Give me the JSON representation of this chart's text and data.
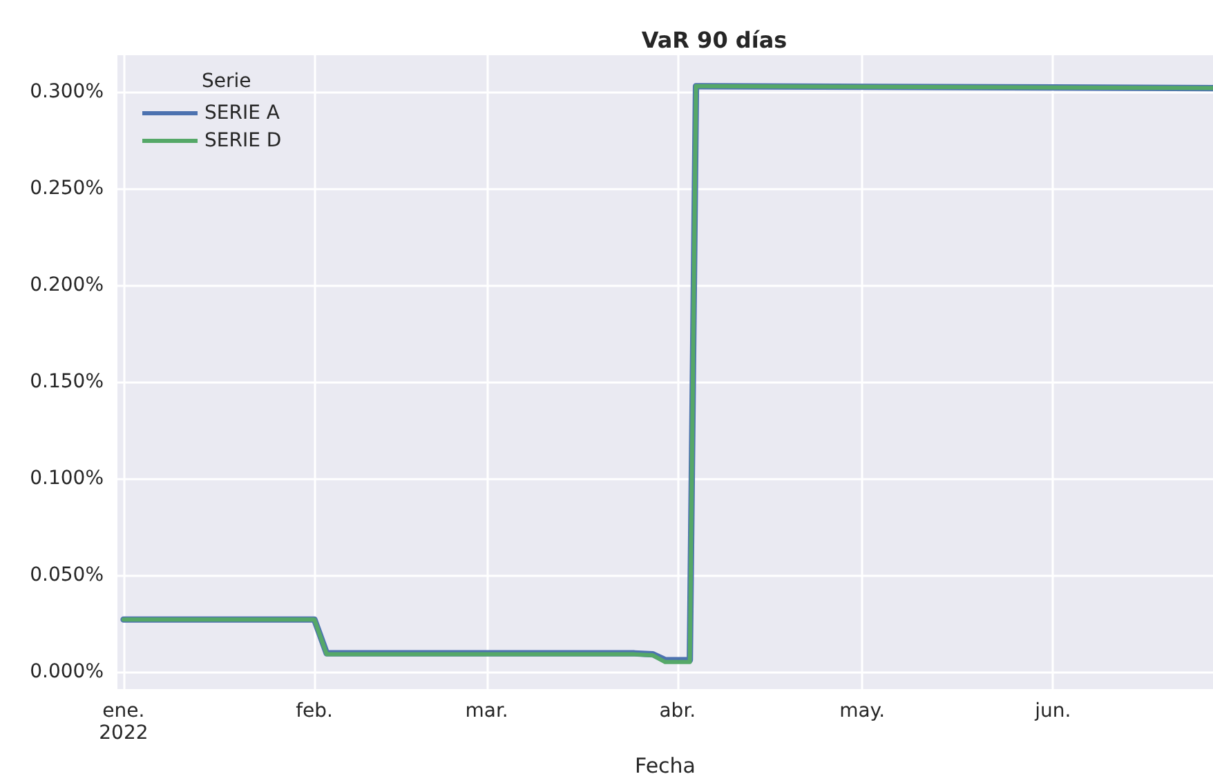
{
  "chart_data": {
    "type": "line",
    "title": "VaR 90 días",
    "xlabel": "Fecha",
    "legend_title": "Serie",
    "legend": "top left",
    "grid": true,
    "marker": "none",
    "line_style": "solid",
    "xlim": [
      "2021-12-31",
      "2022-06-27"
    ],
    "xticks": [
      {
        "value": "2022-01-01",
        "label": "ene.\n2022"
      },
      {
        "value": "2022-02-01",
        "label": "feb."
      },
      {
        "value": "2022-03-01",
        "label": "mar."
      },
      {
        "value": "2022-04-01",
        "label": "abr."
      },
      {
        "value": "2022-05-01",
        "label": "may."
      },
      {
        "value": "2022-06-01",
        "label": "jun."
      }
    ],
    "ylim": [
      -0.009,
      0.319
    ],
    "yticks": [
      {
        "value": 0,
        "label": "0.000%"
      },
      {
        "value": 0.05,
        "label": "0.050%"
      },
      {
        "value": 0.1,
        "label": "0.100%"
      },
      {
        "value": 0.15,
        "label": "0.150%"
      },
      {
        "value": 0.2,
        "label": "0.200%"
      },
      {
        "value": 0.25,
        "label": "0.250%"
      },
      {
        "value": 0.3,
        "label": "0.300%"
      }
    ],
    "series": [
      {
        "name": "SERIE A",
        "color": "#4c72b0",
        "x": [
          "2022-01-01",
          "2022-02-01",
          "2022-02-03",
          "2022-03-25",
          "2022-03-28",
          "2022-03-30",
          "2022-04-03",
          "2022-04-04",
          "2022-06-27"
        ],
        "values": [
          0.027,
          0.027,
          0.0095,
          0.0095,
          0.009,
          0.006,
          0.006,
          0.303,
          0.302
        ]
      },
      {
        "name": "SERIE D",
        "color": "#55a868",
        "x": [
          "2022-01-01",
          "2022-02-01",
          "2022-02-03",
          "2022-03-25",
          "2022-03-28",
          "2022-03-30",
          "2022-04-03",
          "2022-04-04",
          "2022-06-27"
        ],
        "values": [
          0.027,
          0.027,
          0.009,
          0.009,
          0.0085,
          0.005,
          0.005,
          0.303,
          0.302
        ]
      }
    ]
  }
}
